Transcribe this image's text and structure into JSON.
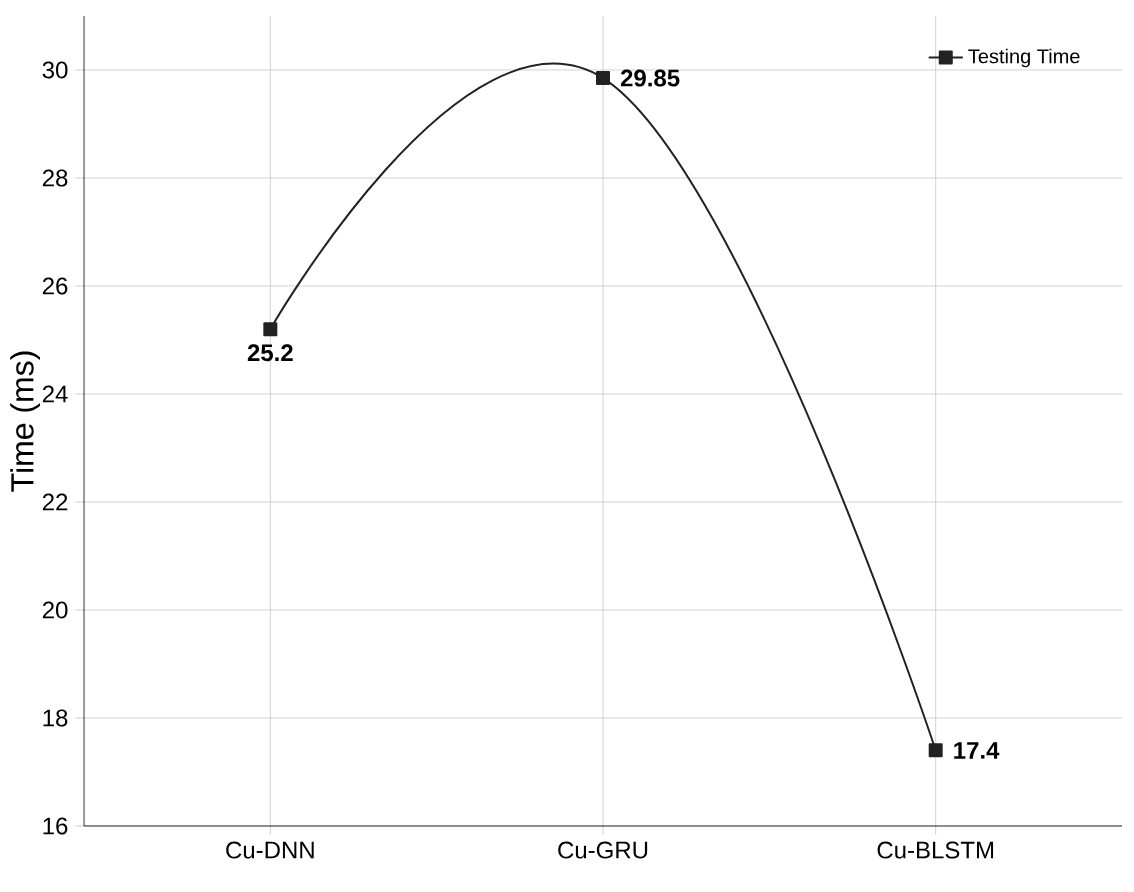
{
  "chart_data": {
    "type": "line",
    "ylabel": "Time (ms)",
    "categories": [
      "Cu-DNN",
      "Cu-GRU",
      "Cu-BLSTM"
    ],
    "series": [
      {
        "name": "Testing Time",
        "color": "#222222",
        "values": [
          25.2,
          29.85,
          17.4
        ]
      }
    ],
    "ylim": [
      16,
      31
    ],
    "yticks": [
      16,
      18,
      20,
      22,
      24,
      26,
      28,
      30
    ],
    "grid": true,
    "legend": "top right",
    "marker": "square",
    "line_style": "solid",
    "data_labels": true
  }
}
